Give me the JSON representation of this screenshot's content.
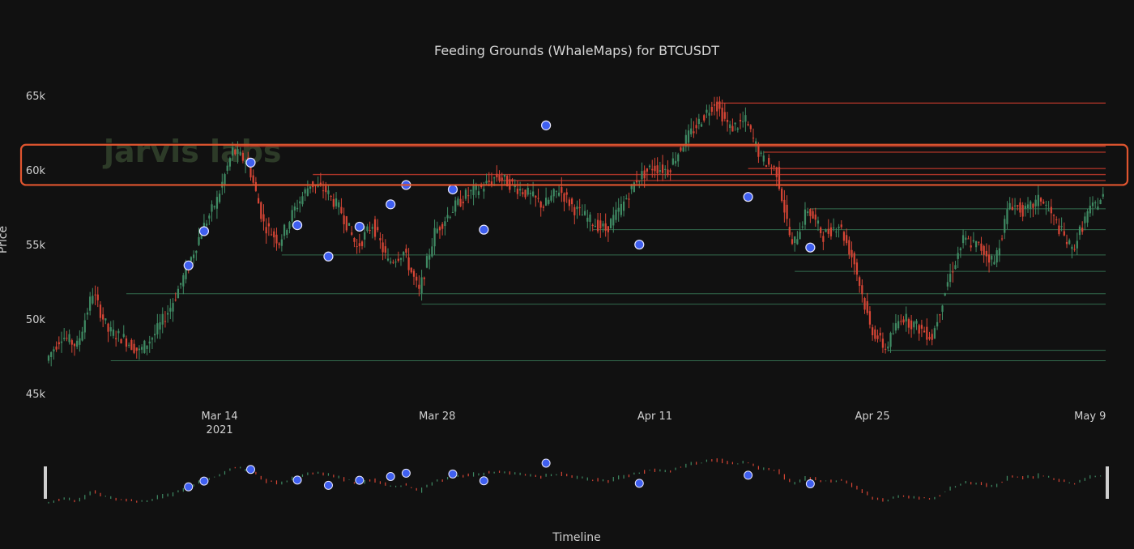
{
  "chart_data": {
    "type": "candlestick",
    "title": "Feeding Grounds (WhaleMaps) for BTCUSDT",
    "xlabel": "Timeline",
    "ylabel": "Price",
    "watermark": "jarvis labs",
    "x_ticks": [
      {
        "date": "2021-03-14",
        "label": "Mar 14",
        "sublabel": "2021"
      },
      {
        "date": "2021-03-28",
        "label": "Mar 28",
        "sublabel": ""
      },
      {
        "date": "2021-04-11",
        "label": "Apr 11",
        "sublabel": ""
      },
      {
        "date": "2021-04-25",
        "label": "Apr 25",
        "sublabel": ""
      },
      {
        "date": "2021-05-09",
        "label": "May 9",
        "sublabel": ""
      }
    ],
    "x_range": [
      "2021-03-03",
      "2021-05-10"
    ],
    "y_ticks": [
      {
        "value": 45000,
        "label": "45k"
      },
      {
        "value": 50000,
        "label": "50k"
      },
      {
        "value": 55000,
        "label": "55k"
      },
      {
        "value": 60000,
        "label": "60k"
      },
      {
        "value": 65000,
        "label": "65k"
      }
    ],
    "ylim": [
      45000,
      66200
    ],
    "price_path": [
      [
        "2021-03-03",
        47200
      ],
      [
        "2021-03-04",
        48900
      ],
      [
        "2021-03-05",
        48200
      ],
      [
        "2021-03-06",
        51800
      ],
      [
        "2021-03-07",
        49200
      ],
      [
        "2021-03-08",
        48700
      ],
      [
        "2021-03-09",
        47800
      ],
      [
        "2021-03-10",
        49000
      ],
      [
        "2021-03-11",
        50800
      ],
      [
        "2021-03-12",
        53200
      ],
      [
        "2021-03-13",
        55900
      ],
      [
        "2021-03-14",
        58000
      ],
      [
        "2021-03-15",
        61300
      ],
      [
        "2021-03-16",
        60500
      ],
      [
        "2021-03-17",
        56400
      ],
      [
        "2021-03-18",
        55200
      ],
      [
        "2021-03-19",
        57400
      ],
      [
        "2021-03-20",
        59100
      ],
      [
        "2021-03-21",
        58600
      ],
      [
        "2021-03-22",
        57200
      ],
      [
        "2021-03-23",
        54800
      ],
      [
        "2021-03-24",
        56400
      ],
      [
        "2021-03-25",
        53800
      ],
      [
        "2021-03-26",
        54500
      ],
      [
        "2021-03-27",
        51800
      ],
      [
        "2021-03-28",
        55800
      ],
      [
        "2021-03-29",
        57200
      ],
      [
        "2021-03-30",
        58300
      ],
      [
        "2021-03-31",
        58800
      ],
      [
        "2021-04-01",
        59600
      ],
      [
        "2021-04-02",
        59000
      ],
      [
        "2021-04-03",
        58400
      ],
      [
        "2021-04-04",
        57600
      ],
      [
        "2021-04-05",
        58700
      ],
      [
        "2021-04-06",
        57400
      ],
      [
        "2021-04-07",
        56600
      ],
      [
        "2021-04-08",
        56000
      ],
      [
        "2021-04-09",
        57500
      ],
      [
        "2021-04-10",
        59400
      ],
      [
        "2021-04-11",
        60200
      ],
      [
        "2021-04-12",
        60000
      ],
      [
        "2021-04-13",
        61800
      ],
      [
        "2021-04-14",
        63200
      ],
      [
        "2021-04-15",
        64600
      ],
      [
        "2021-04-16",
        62800
      ],
      [
        "2021-04-17",
        63300
      ],
      [
        "2021-04-18",
        60800
      ],
      [
        "2021-04-19",
        59900
      ],
      [
        "2021-04-20",
        54800
      ],
      [
        "2021-04-21",
        57400
      ],
      [
        "2021-04-22",
        55600
      ],
      [
        "2021-04-23",
        56400
      ],
      [
        "2021-04-24",
        53800
      ],
      [
        "2021-04-25",
        49500
      ],
      [
        "2021-04-26",
        48000
      ],
      [
        "2021-04-27",
        50200
      ],
      [
        "2021-04-28",
        49500
      ],
      [
        "2021-04-29",
        48800
      ],
      [
        "2021-04-30",
        52500
      ],
      [
        "2021-05-01",
        55300
      ],
      [
        "2021-05-02",
        54900
      ],
      [
        "2021-05-03",
        53800
      ],
      [
        "2021-05-04",
        57800
      ],
      [
        "2021-05-05",
        57200
      ],
      [
        "2021-05-06",
        58100
      ],
      [
        "2021-05-07",
        56400
      ],
      [
        "2021-05-08",
        54600
      ],
      [
        "2021-05-09",
        57100
      ],
      [
        "2021-05-10",
        58200
      ]
    ],
    "whale_markers": [
      [
        "2021-03-12",
        53600
      ],
      [
        "2021-03-13",
        55900
      ],
      [
        "2021-03-16",
        60500
      ],
      [
        "2021-03-19",
        56300
      ],
      [
        "2021-03-21",
        54200
      ],
      [
        "2021-03-23",
        56200
      ],
      [
        "2021-03-25",
        57700
      ],
      [
        "2021-03-26",
        59000
      ],
      [
        "2021-03-29",
        58700
      ],
      [
        "2021-03-31",
        56000
      ],
      [
        "2021-04-04",
        63000
      ],
      [
        "2021-04-10",
        55000
      ],
      [
        "2021-04-17",
        58200
      ],
      [
        "2021-04-21",
        54800
      ]
    ],
    "support_levels": [
      {
        "price": 47200,
        "from": "2021-03-07",
        "to": "2021-05-10",
        "color": "#3f8a63"
      },
      {
        "price": 47900,
        "from": "2021-04-26",
        "to": "2021-05-10",
        "color": "#3f8a63"
      },
      {
        "price": 51000,
        "from": "2021-03-27",
        "to": "2021-05-10",
        "color": "#3f8a63"
      },
      {
        "price": 51700,
        "from": "2021-03-08",
        "to": "2021-05-10",
        "color": "#3f8a63"
      },
      {
        "price": 53200,
        "from": "2021-04-20",
        "to": "2021-05-10",
        "color": "#3f8a63"
      },
      {
        "price": 54300,
        "from": "2021-03-18",
        "to": "2021-05-10",
        "color": "#3f8a63"
      },
      {
        "price": 56000,
        "from": "2021-04-07",
        "to": "2021-05-10",
        "color": "#3f8a63"
      },
      {
        "price": 57400,
        "from": "2021-04-21",
        "to": "2021-05-10",
        "color": "#3f8a63"
      }
    ],
    "resistance_levels": [
      {
        "price": 64500,
        "from": "2021-04-15",
        "to": "2021-05-10",
        "color": "#c0392b"
      },
      {
        "price": 61600,
        "from": "2021-03-15",
        "to": "2021-05-10",
        "color": "#c0392b"
      },
      {
        "price": 61200,
        "from": "2021-04-18",
        "to": "2021-05-10",
        "color": "#c0392b"
      },
      {
        "price": 60100,
        "from": "2021-04-17",
        "to": "2021-05-10",
        "color": "#c0392b"
      },
      {
        "price": 59700,
        "from": "2021-03-20",
        "to": "2021-05-10",
        "color": "#c0392b"
      },
      {
        "price": 59300,
        "from": "2021-04-01",
        "to": "2021-05-10",
        "color": "#c0392b"
      }
    ],
    "highlight_zone": {
      "ymin": 59000,
      "ymax": 61700,
      "color": "#e0552f"
    },
    "colors": {
      "up": "#3f8a63",
      "down": "#d64535",
      "marker": "#3f5ff0",
      "marker_stroke": "#e8e8ff",
      "background": "#111111",
      "text": "#d6d6d6"
    },
    "grid": false,
    "legend": "none",
    "range_slider": true
  }
}
